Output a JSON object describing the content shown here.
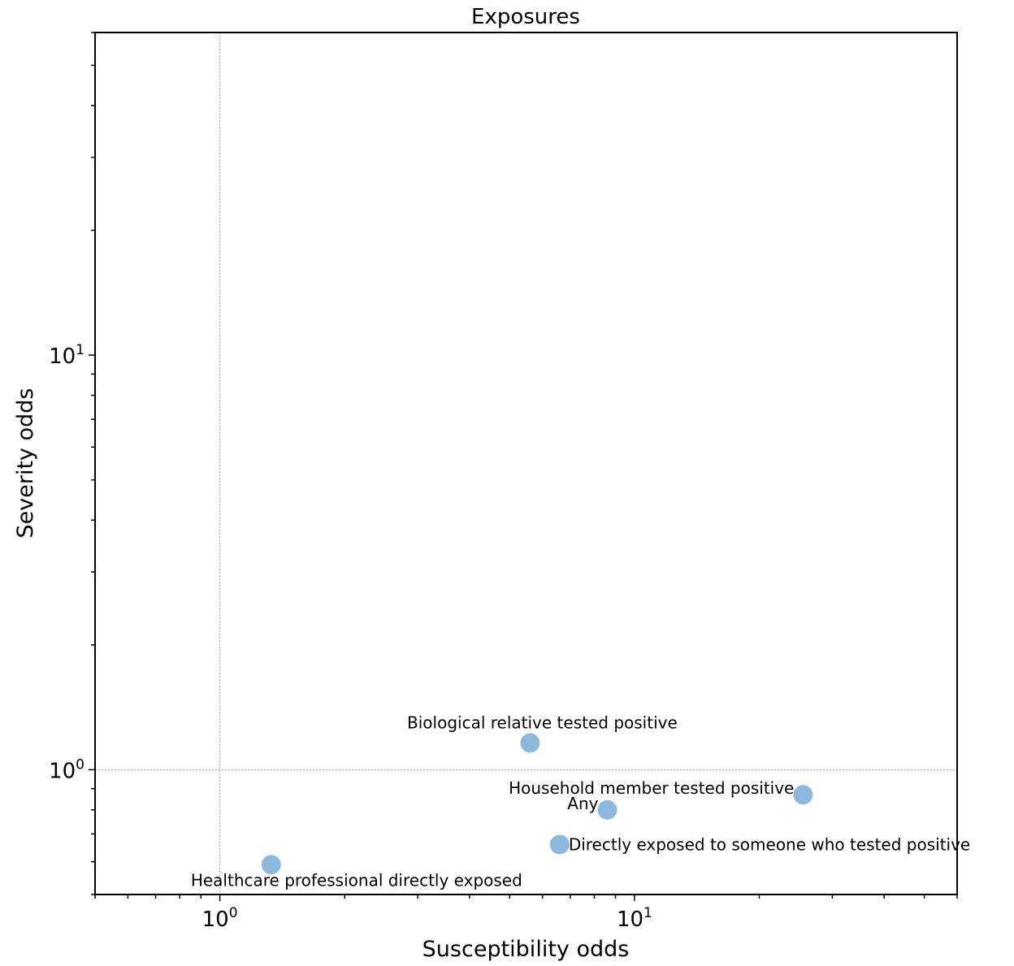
{
  "chart_data": {
    "type": "scatter",
    "title": "Exposures",
    "xlabel": "Susceptibility odds",
    "ylabel": "Severity odds",
    "xscale": "log",
    "yscale": "log",
    "xlim": [
      0.5,
      60
    ],
    "ylim": [
      0.5,
      60
    ],
    "grid": false,
    "reference_lines": {
      "x": 1,
      "y": 1
    },
    "marker_color": "#8db9dc",
    "x_ticks": [
      {
        "base": "10",
        "exp": "0",
        "value": 1
      },
      {
        "base": "10",
        "exp": "1",
        "value": 10
      }
    ],
    "y_ticks": [
      {
        "base": "10",
        "exp": "0",
        "value": 1
      },
      {
        "base": "10",
        "exp": "1",
        "value": 10
      }
    ],
    "points": [
      {
        "label": "Biological relative tested positive",
        "x": 5.6,
        "y": 1.16,
        "label_pos": "above"
      },
      {
        "label": "Household member tested positive",
        "x": 25.5,
        "y": 0.87,
        "label_pos": "left"
      },
      {
        "label": "Any",
        "x": 8.6,
        "y": 0.8,
        "label_pos": "left"
      },
      {
        "label": "Directly exposed to someone who tested positive",
        "x": 6.6,
        "y": 0.66,
        "label_pos": "right"
      },
      {
        "label": "Healthcare professional directly exposed",
        "x": 1.33,
        "y": 0.59,
        "label_pos": "below-left"
      }
    ]
  }
}
